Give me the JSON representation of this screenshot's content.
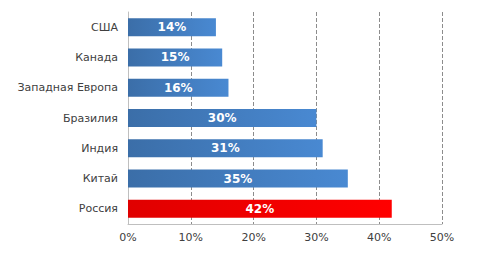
{
  "chart_data": {
    "type": "bar",
    "orientation": "horizontal",
    "categories": [
      "США",
      "Канада",
      "Западная Европа",
      "Бразилия",
      "Индия",
      "Китай",
      "Россия"
    ],
    "values": [
      14,
      15,
      16,
      30,
      31,
      35,
      42
    ],
    "value_labels": [
      "14%",
      "15%",
      "16%",
      "30%",
      "31%",
      "35%",
      "42%"
    ],
    "colors": [
      "#3b6ea8",
      "#3b6ea8",
      "#3b6ea8",
      "#3b6ea8",
      "#3b6ea8",
      "#3b6ea8",
      "#e00000"
    ],
    "xlim": [
      0,
      50
    ],
    "xticks": [
      {
        "value": 0,
        "label": "0%"
      },
      {
        "value": 10,
        "label": "10%"
      },
      {
        "value": 20,
        "label": "20%"
      },
      {
        "value": 30,
        "label": "30%"
      },
      {
        "value": 40,
        "label": "40%"
      },
      {
        "value": 50,
        "label": "50%"
      }
    ],
    "grid": true,
    "data_labels": true
  }
}
